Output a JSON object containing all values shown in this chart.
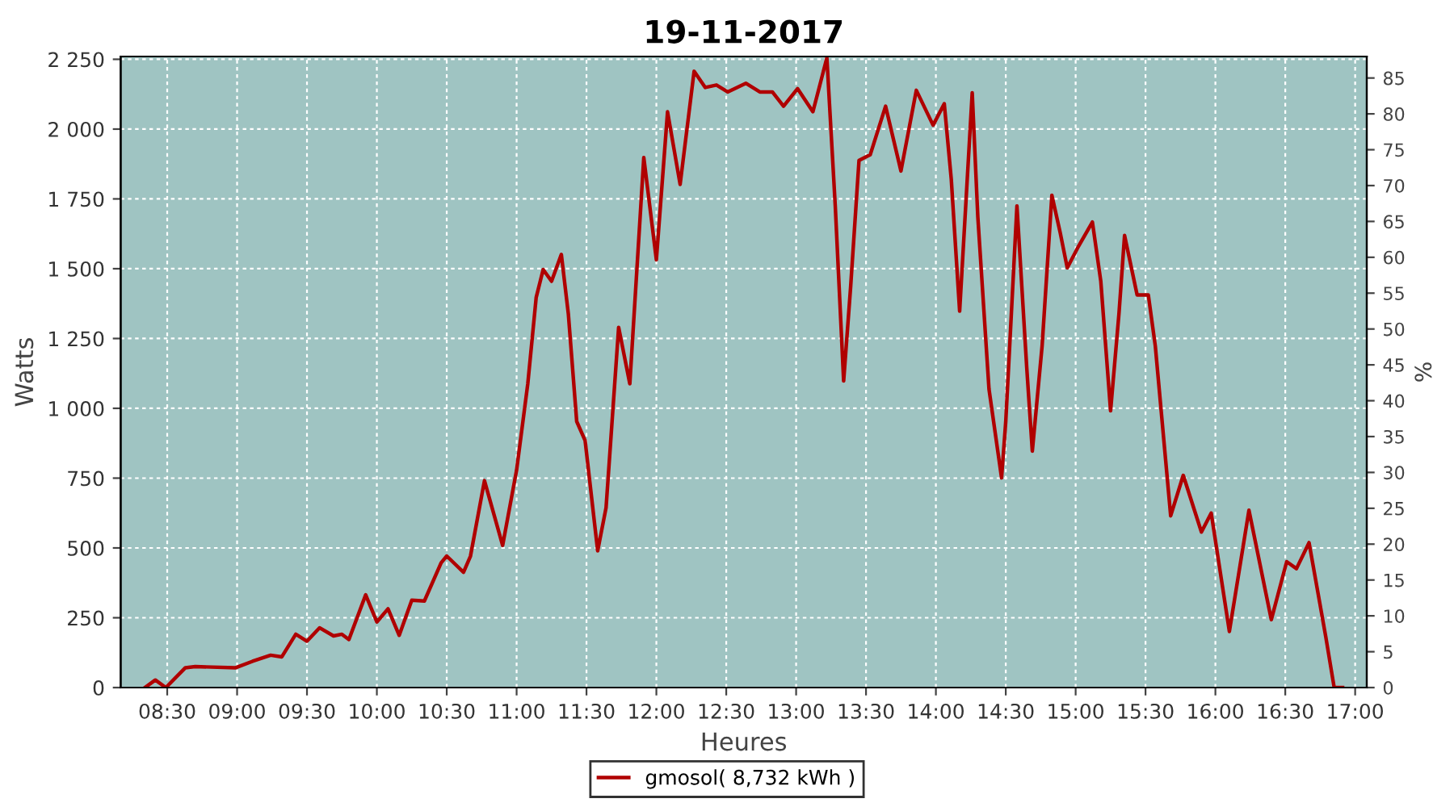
{
  "chart_data": {
    "type": "line",
    "title": "19-11-2017",
    "xlabel": "Heures",
    "ylabel": "Watts",
    "y2label": "%",
    "grid": true,
    "legend": "bottom",
    "line_style": "solid",
    "marker": "none",
    "series": [
      {
        "name": "gmosol( 8,732 kWh )",
        "color": "#b00000",
        "x": [
          8.34,
          8.415,
          8.49,
          8.63,
          8.7,
          8.99,
          9.11,
          9.24,
          9.32,
          9.42,
          9.5,
          9.59,
          9.69,
          9.75,
          9.8,
          9.92,
          10.0,
          10.08,
          10.16,
          10.25,
          10.34,
          10.46,
          10.5,
          10.62,
          10.67,
          10.77,
          10.9,
          11.0,
          11.08,
          11.14,
          11.19,
          11.25,
          11.32,
          11.37,
          11.43,
          11.49,
          11.58,
          11.64,
          11.73,
          11.81,
          11.91,
          12.0,
          12.08,
          12.17,
          12.27,
          12.35,
          12.43,
          12.51,
          12.64,
          12.74,
          12.83,
          12.91,
          13.01,
          13.12,
          13.22,
          13.28,
          13.34,
          13.39,
          13.45,
          13.53,
          13.64,
          13.75,
          13.86,
          13.98,
          14.06,
          14.11,
          14.17,
          14.26,
          14.3,
          14.38,
          14.47,
          14.5,
          14.58,
          14.65,
          14.69,
          14.76,
          14.83,
          14.89,
          14.94,
          15.02,
          15.12,
          15.18,
          15.25,
          15.31,
          15.35,
          15.44,
          15.52,
          15.57,
          15.68,
          15.77,
          15.9,
          15.97,
          16.1,
          16.24,
          16.4,
          16.51,
          16.58,
          16.67,
          16.79,
          16.85,
          16.91
        ],
        "values": [
          0,
          27,
          0,
          71,
          75,
          71,
          94,
          116,
          110,
          191,
          166,
          214,
          185,
          191,
          172,
          332,
          235,
          282,
          187,
          313,
          310,
          447,
          471,
          413,
          471,
          741,
          509,
          779,
          1088,
          1397,
          1497,
          1455,
          1551,
          1339,
          953,
          885,
          490,
          644,
          1290,
          1088,
          1898,
          1532,
          2062,
          1802,
          2207,
          2149,
          2158,
          2133,
          2164,
          2133,
          2133,
          2082,
          2145,
          2062,
          2255,
          1725,
          1098,
          1435,
          1888,
          1908,
          2082,
          1850,
          2139,
          2014,
          2091,
          1821,
          1348,
          2130,
          1686,
          1069,
          751,
          953,
          1725,
          1146,
          847,
          1223,
          1763,
          1628,
          1503,
          1580,
          1667,
          1455,
          991,
          1339,
          1619,
          1406,
          1406,
          1223,
          615,
          760,
          557,
          625,
          201,
          635,
          243,
          451,
          426,
          519,
          181,
          0,
          0
        ]
      }
    ],
    "xlim": [
      8.167,
      17.083
    ],
    "xticks": [
      {
        "value": 8.5,
        "label": "08:30"
      },
      {
        "value": 9,
        "label": "09:00"
      },
      {
        "value": 9.5,
        "label": "09:30"
      },
      {
        "value": 10,
        "label": "10:00"
      },
      {
        "value": 10.5,
        "label": "10:30"
      },
      {
        "value": 11,
        "label": "11:00"
      },
      {
        "value": 11.5,
        "label": "11:30"
      },
      {
        "value": 12,
        "label": "12:00"
      },
      {
        "value": 12.5,
        "label": "12:30"
      },
      {
        "value": 13,
        "label": "13:00"
      },
      {
        "value": 13.5,
        "label": "13:30"
      },
      {
        "value": 14,
        "label": "14:00"
      },
      {
        "value": 14.5,
        "label": "14:30"
      },
      {
        "value": 15,
        "label": "15:00"
      },
      {
        "value": 15.5,
        "label": "15:30"
      },
      {
        "value": 16,
        "label": "16:00"
      },
      {
        "value": 16.5,
        "label": "16:30"
      },
      {
        "value": 17,
        "label": "17:00"
      }
    ],
    "ylim": [
      0,
      2260
    ],
    "yticks": [
      0,
      250,
      500,
      750,
      {
        "value": 1000,
        "label": "1 000"
      },
      {
        "value": 1250,
        "label": "1 250"
      },
      {
        "value": 1500,
        "label": "1 500"
      },
      {
        "value": 1750,
        "label": "1 750"
      },
      {
        "value": 2000,
        "label": "2 000"
      },
      {
        "value": 2250,
        "label": "2 250"
      }
    ],
    "y2lim": [
      0,
      88
    ],
    "y2ticks": [
      0,
      5,
      10,
      15,
      20,
      25,
      30,
      35,
      40,
      45,
      50,
      55,
      60,
      65,
      70,
      75,
      80,
      85
    ]
  }
}
